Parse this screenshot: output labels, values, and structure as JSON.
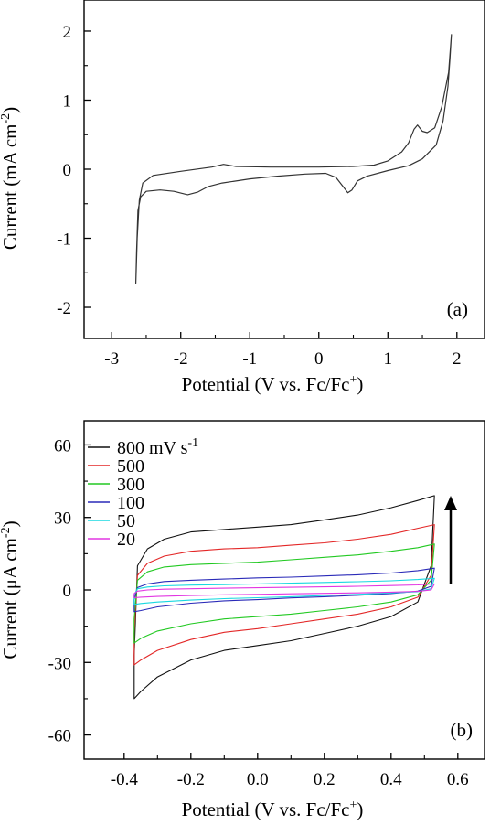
{
  "chart_data": [
    {
      "type": "line",
      "panel_label": "(a)",
      "xlabel": "Potential (V vs. Fc/Fc",
      "xlabel_sup": "+",
      "xlabel_end": ")",
      "ylabel": "Current (mA cm",
      "ylabel_sup": "-2",
      "ylabel_end": ")",
      "xlim": [
        -3.4,
        2.4
      ],
      "ylim": [
        -2.45,
        2.45
      ],
      "x_ticks": [
        -3,
        -2,
        -1,
        0,
        1,
        2
      ],
      "x_tick_labels": [
        "-3",
        "-2",
        "-1",
        "0",
        "1",
        "2"
      ],
      "y_ticks": [
        -2,
        -1,
        0,
        1,
        2
      ],
      "y_tick_labels": [
        "-2",
        "-1",
        "0",
        "1",
        "2"
      ],
      "grid": false,
      "color": "#333333",
      "series": [
        {
          "points": [
            [
              -2.65,
              -1.65
            ],
            [
              -2.64,
              -1.2
            ],
            [
              -2.62,
              -0.6
            ],
            [
              -2.58,
              -0.4
            ],
            [
              -2.5,
              -0.32
            ],
            [
              -2.3,
              -0.3
            ],
            [
              -2.1,
              -0.32
            ],
            [
              -1.9,
              -0.37
            ],
            [
              -1.75,
              -0.33
            ],
            [
              -1.6,
              -0.25
            ],
            [
              -1.4,
              -0.2
            ],
            [
              -1.0,
              -0.14
            ],
            [
              -0.6,
              -0.1
            ],
            [
              -0.2,
              -0.07
            ],
            [
              0.1,
              -0.06
            ],
            [
              0.25,
              -0.12
            ],
            [
              0.35,
              -0.25
            ],
            [
              0.42,
              -0.34
            ],
            [
              0.48,
              -0.3
            ],
            [
              0.56,
              -0.17
            ],
            [
              0.7,
              -0.1
            ],
            [
              1.0,
              -0.02
            ],
            [
              1.3,
              0.05
            ],
            [
              1.5,
              0.15
            ],
            [
              1.7,
              0.35
            ],
            [
              1.8,
              0.7
            ],
            [
              1.87,
              1.2
            ],
            [
              1.9,
              1.6
            ],
            [
              1.92,
              1.95
            ],
            [
              1.88,
              1.4
            ],
            [
              1.78,
              0.9
            ],
            [
              1.68,
              0.6
            ],
            [
              1.57,
              0.53
            ],
            [
              1.5,
              0.55
            ],
            [
              1.43,
              0.64
            ],
            [
              1.38,
              0.58
            ],
            [
              1.3,
              0.38
            ],
            [
              1.2,
              0.25
            ],
            [
              1.0,
              0.12
            ],
            [
              0.8,
              0.06
            ],
            [
              0.5,
              0.04
            ],
            [
              0.0,
              0.03
            ],
            [
              -0.7,
              0.03
            ],
            [
              -1.2,
              0.04
            ],
            [
              -1.38,
              0.07
            ],
            [
              -1.55,
              0.03
            ],
            [
              -2.0,
              -0.03
            ],
            [
              -2.4,
              -0.09
            ],
            [
              -2.55,
              -0.2
            ],
            [
              -2.6,
              -0.45
            ],
            [
              -2.63,
              -1.0
            ],
            [
              -2.65,
              -1.65
            ]
          ]
        }
      ]
    },
    {
      "type": "line",
      "panel_label": "(b)",
      "xlabel": "Potential (V vs. Fc/Fc",
      "xlabel_sup": "+",
      "xlabel_end": ")",
      "ylabel": "Current (μA cm",
      "ylabel_sup": "-2",
      "ylabel_end": ")",
      "xlim": [
        -0.52,
        0.68
      ],
      "ylim": [
        -70,
        70
      ],
      "x_ticks": [
        -0.4,
        -0.2,
        0.0,
        0.2,
        0.4,
        0.6
      ],
      "x_tick_labels": [
        "-0.4",
        "-0.2",
        "0.0",
        "0.2",
        "0.4",
        "0.6"
      ],
      "y_ticks": [
        -60,
        -30,
        0,
        30,
        60
      ],
      "y_tick_labels": [
        "-60",
        "-30",
        "0",
        "30",
        "60"
      ],
      "grid": false,
      "legend_position": "top-left",
      "annotation": "arrow pointing up (increasing scan rate)",
      "series": [
        {
          "name": "800 mV s",
          "name_sup": "-1",
          "color": "#111111",
          "v_start": -0.37,
          "v_end": 0.53,
          "anodic": [
            [
              -0.37,
              -27
            ],
            [
              -0.36,
              10
            ],
            [
              -0.33,
              17
            ],
            [
              -0.28,
              21
            ],
            [
              -0.2,
              24
            ],
            [
              -0.1,
              25
            ],
            [
              0.0,
              26
            ],
            [
              0.1,
              27
            ],
            [
              0.2,
              29
            ],
            [
              0.3,
              31
            ],
            [
              0.4,
              34
            ],
            [
              0.48,
              37
            ],
            [
              0.53,
              39
            ]
          ],
          "cathodic": [
            [
              0.53,
              39
            ],
            [
              0.52,
              10
            ],
            [
              0.48,
              -5
            ],
            [
              0.4,
              -11
            ],
            [
              0.3,
              -15
            ],
            [
              0.2,
              -18
            ],
            [
              0.1,
              -21
            ],
            [
              0.0,
              -23
            ],
            [
              -0.1,
              -25
            ],
            [
              -0.2,
              -29
            ],
            [
              -0.3,
              -36
            ],
            [
              -0.35,
              -42
            ],
            [
              -0.37,
              -45
            ]
          ]
        },
        {
          "name": "500",
          "color": "#e32727",
          "v_start": -0.37,
          "v_end": 0.53,
          "anodic": [
            [
              -0.37,
              -18
            ],
            [
              -0.36,
              6
            ],
            [
              -0.33,
              11
            ],
            [
              -0.28,
              14
            ],
            [
              -0.2,
              16
            ],
            [
              -0.1,
              17
            ],
            [
              0.0,
              17.5
            ],
            [
              0.1,
              18.5
            ],
            [
              0.2,
              19.5
            ],
            [
              0.3,
              21
            ],
            [
              0.4,
              23
            ],
            [
              0.48,
              25.5
            ],
            [
              0.53,
              27
            ]
          ],
          "cathodic": [
            [
              0.53,
              27
            ],
            [
              0.52,
              6
            ],
            [
              0.48,
              -3
            ],
            [
              0.4,
              -7
            ],
            [
              0.3,
              -10
            ],
            [
              0.2,
              -12
            ],
            [
              0.1,
              -14
            ],
            [
              0.0,
              -16
            ],
            [
              -0.1,
              -17.5
            ],
            [
              -0.2,
              -20.5
            ],
            [
              -0.3,
              -25
            ],
            [
              -0.35,
              -29
            ],
            [
              -0.37,
              -31
            ]
          ]
        },
        {
          "name": "300",
          "color": "#22c922",
          "v_start": -0.37,
          "v_end": 0.53,
          "anodic": [
            [
              -0.37,
              -12
            ],
            [
              -0.36,
              4
            ],
            [
              -0.33,
              7.5
            ],
            [
              -0.28,
              9.5
            ],
            [
              -0.2,
              10.5
            ],
            [
              -0.1,
              11
            ],
            [
              0.0,
              11.5
            ],
            [
              0.1,
              12.5
            ],
            [
              0.2,
              13.5
            ],
            [
              0.3,
              14.5
            ],
            [
              0.4,
              16
            ],
            [
              0.48,
              17.5
            ],
            [
              0.53,
              19
            ]
          ],
          "cathodic": [
            [
              0.53,
              19
            ],
            [
              0.52,
              4
            ],
            [
              0.48,
              -2
            ],
            [
              0.4,
              -5
            ],
            [
              0.3,
              -7
            ],
            [
              0.2,
              -8.5
            ],
            [
              0.1,
              -10
            ],
            [
              0.0,
              -11
            ],
            [
              -0.1,
              -12
            ],
            [
              -0.2,
              -14
            ],
            [
              -0.3,
              -17
            ],
            [
              -0.35,
              -20
            ],
            [
              -0.37,
              -22
            ]
          ]
        },
        {
          "name": "100",
          "color": "#2a2ab8",
          "v_start": -0.37,
          "v_end": 0.53,
          "anodic": [
            [
              -0.37,
              -4
            ],
            [
              -0.36,
              1
            ],
            [
              -0.33,
              2.5
            ],
            [
              -0.28,
              3.5
            ],
            [
              -0.2,
              4
            ],
            [
              -0.1,
              4.5
            ],
            [
              0.0,
              5
            ],
            [
              0.1,
              5.3
            ],
            [
              0.2,
              5.8
            ],
            [
              0.3,
              6.3
            ],
            [
              0.4,
              7
            ],
            [
              0.48,
              8
            ],
            [
              0.53,
              9
            ]
          ],
          "cathodic": [
            [
              0.53,
              9
            ],
            [
              0.52,
              1.5
            ],
            [
              0.48,
              -0.5
            ],
            [
              0.4,
              -1.5
            ],
            [
              0.3,
              -2.2
            ],
            [
              0.2,
              -2.8
            ],
            [
              0.1,
              -3.3
            ],
            [
              0.0,
              -4
            ],
            [
              -0.1,
              -4.5
            ],
            [
              -0.2,
              -5.5
            ],
            [
              -0.3,
              -7
            ],
            [
              -0.35,
              -8.5
            ],
            [
              -0.37,
              -9
            ]
          ]
        },
        {
          "name": "50",
          "color": "#18d8e0",
          "v_start": -0.37,
          "v_end": 0.53,
          "anodic": [
            [
              -0.37,
              -2
            ],
            [
              -0.36,
              0.5
            ],
            [
              -0.33,
              1.2
            ],
            [
              -0.28,
              1.7
            ],
            [
              -0.2,
              2
            ],
            [
              -0.1,
              2.2
            ],
            [
              0.0,
              2.5
            ],
            [
              0.1,
              2.8
            ],
            [
              0.2,
              3.1
            ],
            [
              0.3,
              3.4
            ],
            [
              0.4,
              3.8
            ],
            [
              0.48,
              4.3
            ],
            [
              0.53,
              4.8
            ]
          ],
          "cathodic": [
            [
              0.53,
              4.8
            ],
            [
              0.52,
              0.5
            ],
            [
              0.48,
              -0.7
            ],
            [
              0.4,
              -1.2
            ],
            [
              0.3,
              -1.8
            ],
            [
              0.2,
              -2.3
            ],
            [
              0.1,
              -2.8
            ],
            [
              0.0,
              -3.2
            ],
            [
              -0.1,
              -3.6
            ],
            [
              -0.2,
              -4.2
            ],
            [
              -0.3,
              -5
            ],
            [
              -0.35,
              -5.6
            ],
            [
              -0.37,
              -6
            ]
          ]
        },
        {
          "name": "20",
          "color": "#e236e2",
          "v_start": -0.37,
          "v_end": 0.53,
          "anodic": [
            [
              -0.37,
              -1.5
            ],
            [
              -0.36,
              -0.5
            ],
            [
              -0.33,
              0
            ],
            [
              -0.28,
              0.3
            ],
            [
              -0.2,
              0.5
            ],
            [
              -0.1,
              0.7
            ],
            [
              0.0,
              0.9
            ],
            [
              0.1,
              1.1
            ],
            [
              0.2,
              1.3
            ],
            [
              0.3,
              1.5
            ],
            [
              0.4,
              1.8
            ],
            [
              0.48,
              2.1
            ],
            [
              0.53,
              2.5
            ]
          ],
          "cathodic": [
            [
              0.53,
              2.5
            ],
            [
              0.52,
              0
            ],
            [
              0.48,
              -0.6
            ],
            [
              0.4,
              -0.9
            ],
            [
              0.3,
              -1.2
            ],
            [
              0.2,
              -1.4
            ],
            [
              0.1,
              -1.6
            ],
            [
              0.0,
              -1.8
            ],
            [
              -0.1,
              -2
            ],
            [
              -0.2,
              -2.3
            ],
            [
              -0.3,
              -2.7
            ],
            [
              -0.35,
              -3
            ],
            [
              -0.37,
              -3.2
            ]
          ]
        }
      ]
    }
  ]
}
